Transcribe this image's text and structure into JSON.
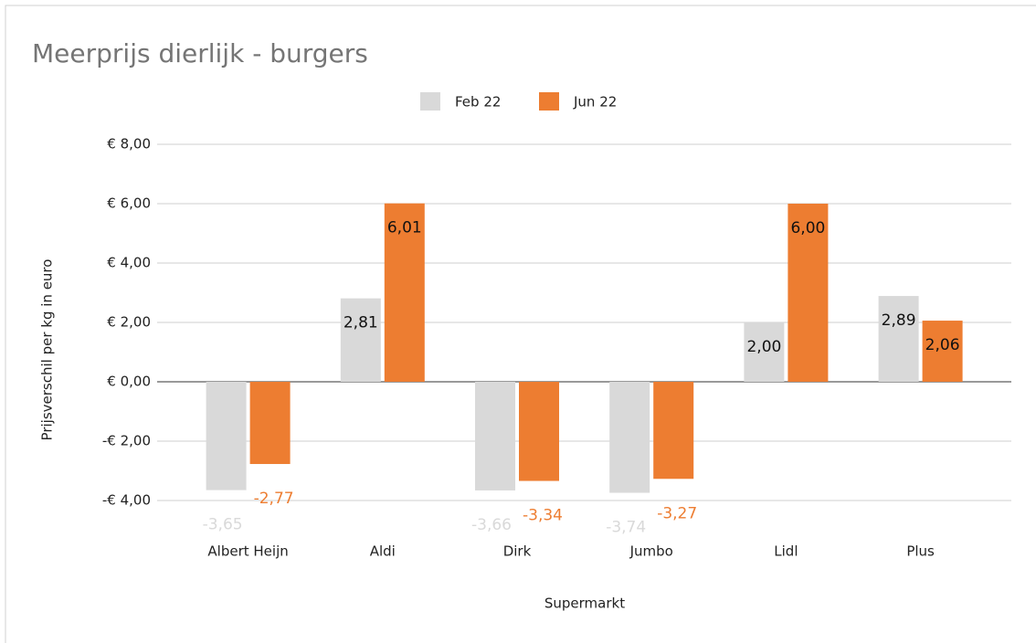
{
  "chart_data": {
    "type": "bar",
    "title": "Meerprijs dierlijk - burgers",
    "x_label": "Supermarkt",
    "y_label": "Prijsverschil per kg in euro",
    "categories": [
      "Albert Heijn",
      "Aldi",
      "Dirk",
      "Jumbo",
      "Lidl",
      "Plus"
    ],
    "series": [
      {
        "name": "Feb 22",
        "color": "#d9d9d9",
        "values": [
          -3.65,
          2.81,
          -3.66,
          -3.74,
          2.0,
          2.89
        ],
        "value_labels": [
          "-3,65",
          "2,81",
          "-3,66",
          "-3,74",
          "2,00",
          "2,89"
        ]
      },
      {
        "name": "Jun 22",
        "color": "#ed7d31",
        "values": [
          -2.77,
          6.01,
          -3.34,
          -3.27,
          6.0,
          2.06
        ],
        "value_labels": [
          "-2,77",
          "6,01",
          "-3,34",
          "-3,27",
          "6,00",
          "2,06"
        ]
      }
    ],
    "ylim": [
      -4,
      8
    ],
    "yticks": [
      {
        "value": -4,
        "label": "-€ 4,00"
      },
      {
        "value": -2,
        "label": "-€ 2,00"
      },
      {
        "value": 0,
        "label": "€ 0,00"
      },
      {
        "value": 2,
        "label": "€ 2,00"
      },
      {
        "value": 4,
        "label": "€ 4,00"
      },
      {
        "value": 6,
        "label": "€ 6,00"
      },
      {
        "value": 8,
        "label": "€ 8,00"
      }
    ],
    "grid": true,
    "legend": "top"
  }
}
